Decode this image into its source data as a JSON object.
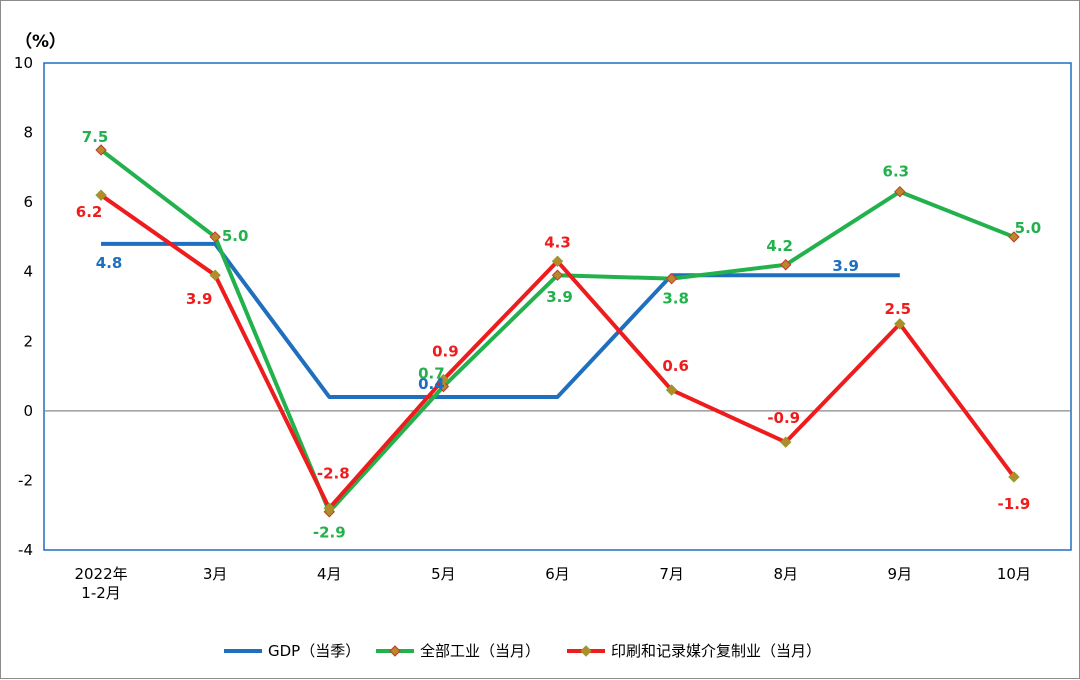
{
  "chart_data": {
    "type": "line",
    "y_unit": "（%）",
    "ylim": [
      -4,
      10
    ],
    "y_ticks": [
      "10",
      "8",
      "6",
      "4",
      "2",
      "0",
      "-2",
      "-4"
    ],
    "categories": [
      "2022年\n1-2月",
      "3月",
      "4月",
      "5月",
      "6月",
      "7月",
      "8月",
      "9月",
      "10月"
    ],
    "series": [
      {
        "name": "GDP（当季）",
        "color": "#1f6fbf",
        "marker": false,
        "values": [
          4.8,
          4.8,
          0.4,
          0.4,
          0.4,
          3.9,
          3.9,
          3.9,
          null
        ],
        "labels": [
          {
            "index": 0,
            "text": "4.8"
          },
          {
            "index": 3,
            "text": "0.4"
          },
          {
            "index": 6,
            "text": "3.9"
          }
        ]
      },
      {
        "name": "全部工业（当月）",
        "color": "#22b14c",
        "marker": true,
        "values": [
          7.5,
          5.0,
          -2.9,
          0.7,
          3.9,
          3.8,
          4.2,
          6.3,
          5.0
        ],
        "labels": [
          {
            "index": 0,
            "text": "7.5"
          },
          {
            "index": 1,
            "text": "5.0"
          },
          {
            "index": 2,
            "text": "-2.9"
          },
          {
            "index": 3,
            "text": "0.7"
          },
          {
            "index": 4,
            "text": "3.9"
          },
          {
            "index": 5,
            "text": "3.8"
          },
          {
            "index": 6,
            "text": "4.2"
          },
          {
            "index": 7,
            "text": "6.3"
          },
          {
            "index": 8,
            "text": "5.0"
          }
        ]
      },
      {
        "name": "印刷和记录媒介复制业（当月）",
        "color": "#ee1c1c",
        "marker": true,
        "values": [
          6.2,
          3.9,
          -2.8,
          0.9,
          4.3,
          0.6,
          -0.9,
          2.5,
          -1.9
        ],
        "labels": [
          {
            "index": 0,
            "text": "6.2"
          },
          {
            "index": 1,
            "text": "3.9"
          },
          {
            "index": 2,
            "text": "-2.8"
          },
          {
            "index": 3,
            "text": "0.9"
          },
          {
            "index": 4,
            "text": "4.3"
          },
          {
            "index": 5,
            "text": "0.6"
          },
          {
            "index": 6,
            "text": "-0.9"
          },
          {
            "index": 7,
            "text": "2.5"
          },
          {
            "index": 8,
            "text": "-1.9"
          }
        ]
      }
    ],
    "legend_position": "bottom",
    "grid": false
  }
}
